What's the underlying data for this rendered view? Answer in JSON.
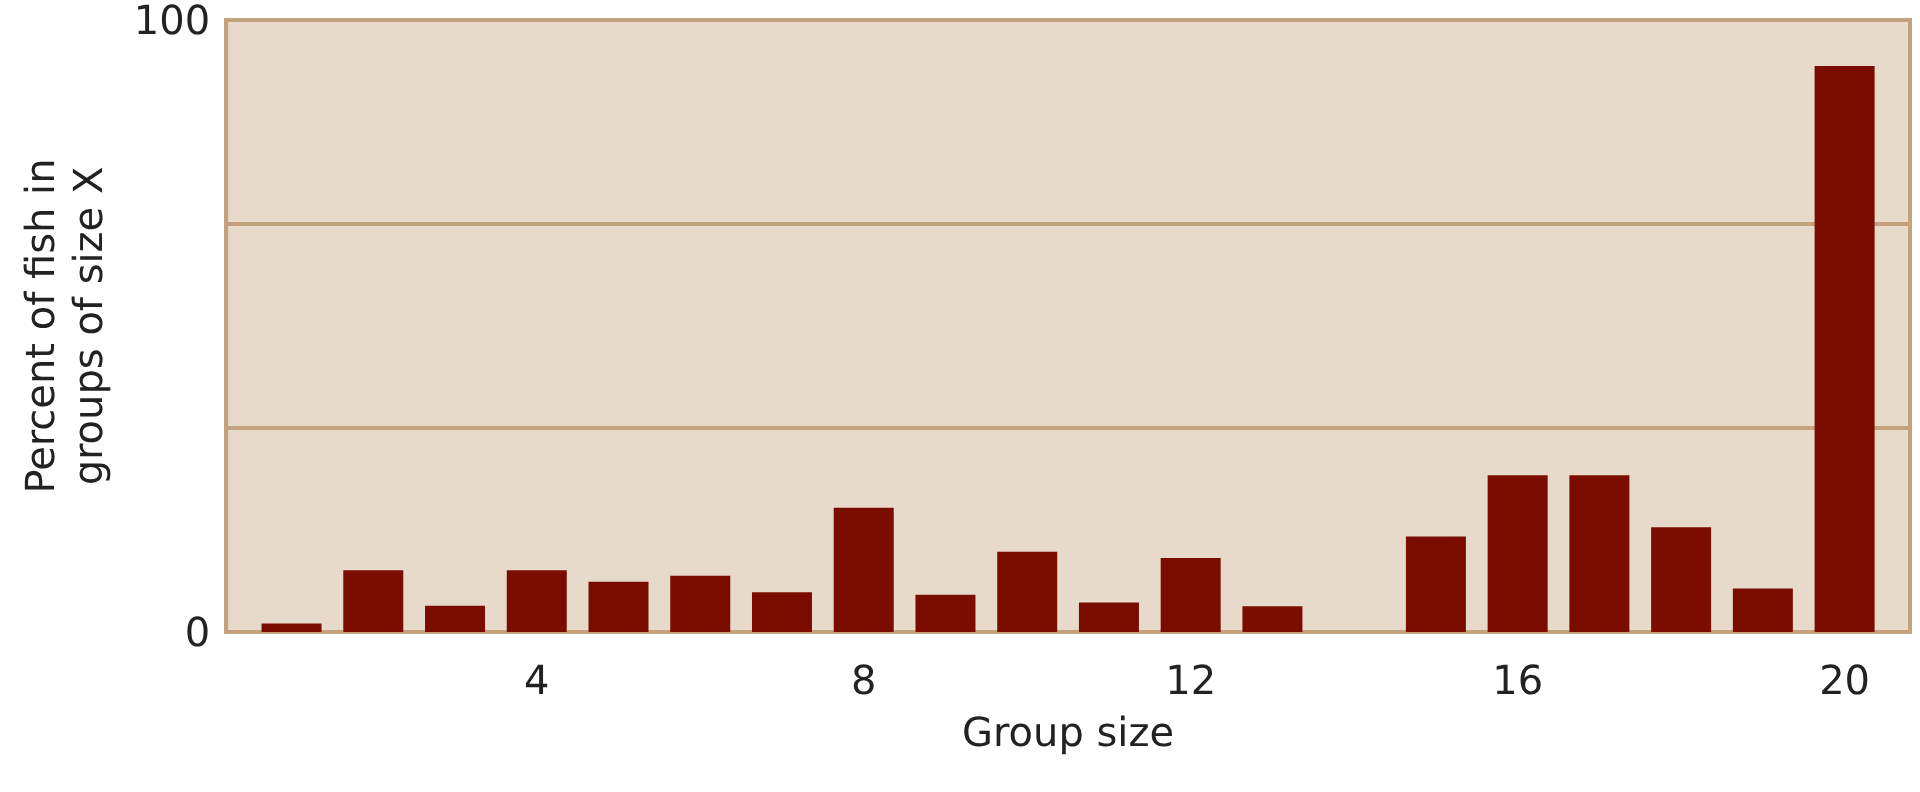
{
  "chart_data": {
    "type": "bar",
    "xlabel": "Group size",
    "ylabel": "Percent of fish in\ngroups of size X",
    "x": [
      1,
      2,
      3,
      4,
      5,
      6,
      7,
      8,
      9,
      10,
      11,
      12,
      13,
      14,
      15,
      16,
      17,
      18,
      19,
      20
    ],
    "values": [
      1.4,
      10.1,
      4.3,
      10.1,
      8.2,
      9.2,
      6.5,
      20.3,
      6.1,
      13.1,
      4.8,
      12.1,
      4.2,
      0,
      15.6,
      25.6,
      25.6,
      17.1,
      7.1,
      92.5
    ],
    "color": "#7b0d00",
    "xlim": [
      0.2,
      20.8
    ],
    "xticks": [
      4,
      8,
      12,
      16,
      20
    ],
    "ylim": [
      0,
      100
    ],
    "yticks": [
      0,
      {
        "value": 33.33,
        "label": null
      },
      {
        "value": 66.67,
        "label": null
      },
      100
    ],
    "grid": "y"
  }
}
